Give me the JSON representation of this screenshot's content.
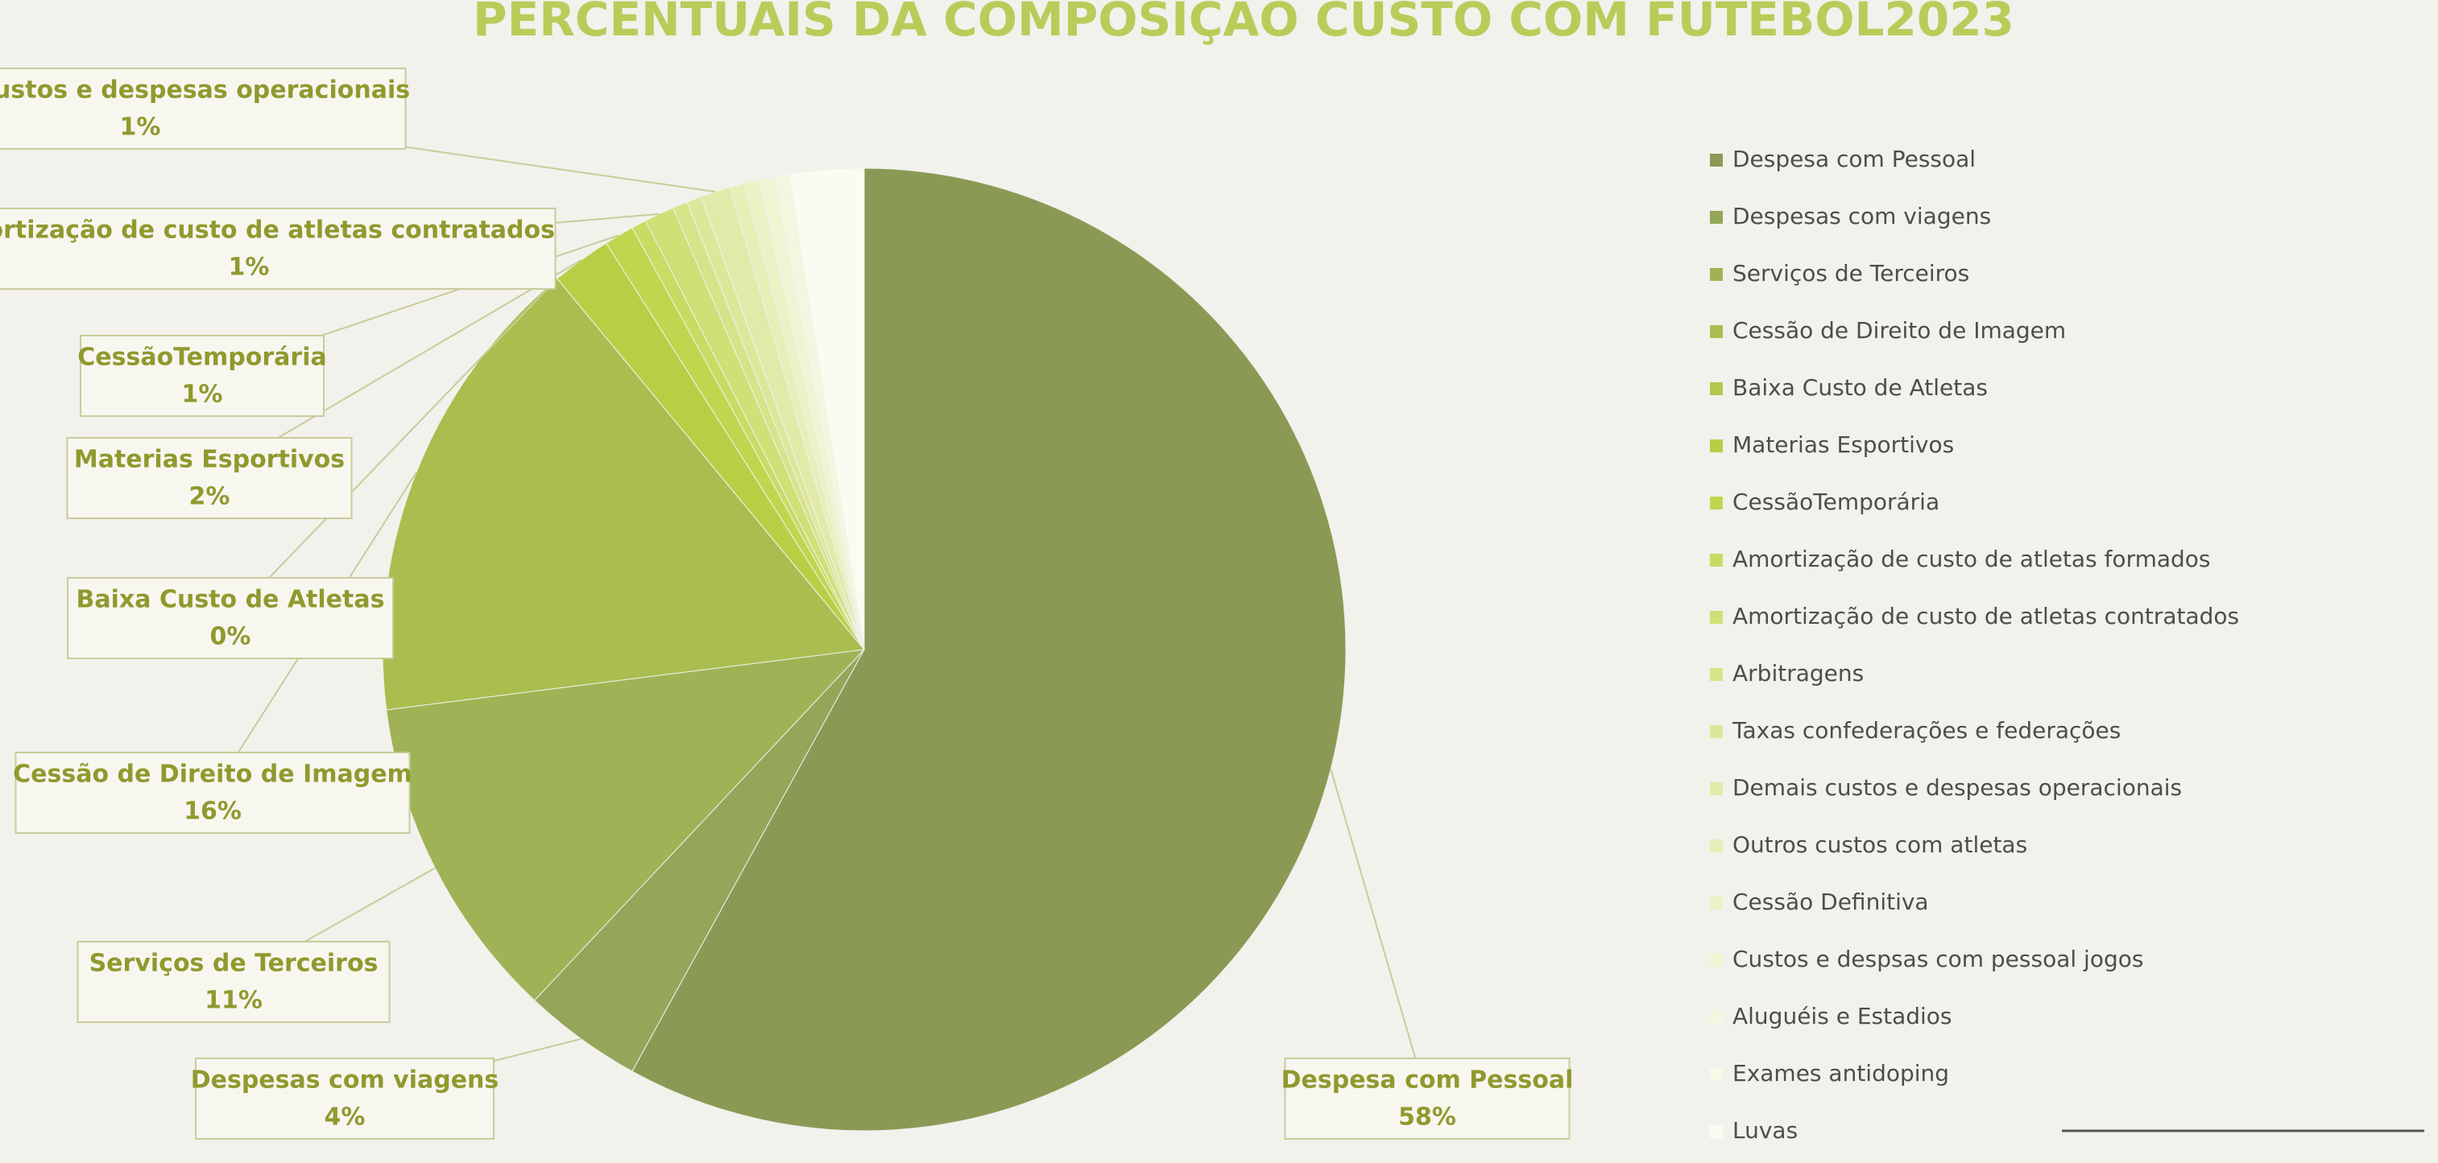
{
  "chart_data": {
    "type": "pie",
    "title": "PERCENTUAIS DA COMPOSIÇÃO CUSTO COM FUTEBOL2023",
    "categories": [
      "Despesa com Pessoal",
      "Despesas com viagens",
      "Serviços de Terceiros",
      "Cessão de Direito de Imagem",
      "Baixa Custo de Atletas",
      "Materias Esportivos",
      "CessãoTemporária",
      "Amortização de custo de atletas formados",
      "Amortização de custo de atletas contratados",
      "Arbitragens",
      "Taxas confederações e federações",
      "Demais custos e despesas operacionais",
      "Outros custos com atletas",
      "Cessão Definitiva",
      "Custos e despsas com pessoal jogos",
      "Aluguéis e Estadios",
      "Exames antidoping",
      "Luvas"
    ],
    "values": [
      58,
      4,
      11,
      16,
      0,
      2,
      1,
      0.5,
      1,
      0.5,
      0.5,
      1,
      0.5,
      0.5,
      0.5,
      0.5,
      0,
      2.5
    ],
    "value_labels": [
      "58%",
      "4%",
      "11%",
      "16%",
      "0%",
      "2%",
      "1%",
      null,
      "1%",
      null,
      null,
      "1%",
      null,
      null,
      null,
      null,
      null,
      null
    ],
    "colors": [
      "#8a9a55",
      "#94a65a",
      "#9fb356",
      "#a9be4f",
      "#b0c84c",
      "#b8cf45",
      "#c1d64e",
      "#c9db63",
      "#d0df76",
      "#d7e389",
      "#dde79a",
      "#e2eaa9",
      "#e7eeb8",
      "#ecf1c6",
      "#f0f4d3",
      "#f4f7df",
      "#f7f9e9",
      "#fafcf2"
    ],
    "legend": "right"
  }
}
